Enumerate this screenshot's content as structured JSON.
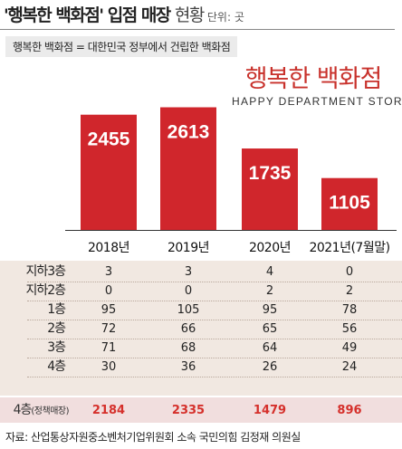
{
  "title": {
    "main": "'행복한 백화점' 입점 매장",
    "light": "현황",
    "unit": "단위: 곳"
  },
  "note": "행복한 백화점 = 대한민국 정부에서 건립한 백화점",
  "logo": {
    "korean": "행복한 백화점",
    "english": "HAPPY DEPARTMENT STORE"
  },
  "colors": {
    "bar": "#d0262c",
    "accent": "#d5302b",
    "table_bg": "#f1e8e1",
    "highlight_row_bg": "#f1dede"
  },
  "chart_data": {
    "type": "bar",
    "title": "'행복한 백화점' 입점 매장 현황",
    "categories": [
      "2018년",
      "2019년",
      "2020년",
      "2021년(7월말)"
    ],
    "values": [
      2455,
      2613,
      1735,
      1105
    ],
    "unit": "곳",
    "data_labels": true,
    "ylim": [
      0,
      2700
    ]
  },
  "table": {
    "rows": [
      {
        "label": "지하3층",
        "label_sub": "",
        "values": [
          "3",
          "3",
          "4",
          "0"
        ],
        "highlight": false
      },
      {
        "label": "지하2층",
        "label_sub": "",
        "values": [
          "0",
          "0",
          "2",
          "2"
        ],
        "highlight": false
      },
      {
        "label": "1층",
        "label_sub": "",
        "values": [
          "95",
          "105",
          "95",
          "78"
        ],
        "highlight": false
      },
      {
        "label": "2층",
        "label_sub": "",
        "values": [
          "72",
          "66",
          "65",
          "56"
        ],
        "highlight": false
      },
      {
        "label": "3층",
        "label_sub": "",
        "values": [
          "71",
          "68",
          "64",
          "49"
        ],
        "highlight": false
      },
      {
        "label": "4층",
        "label_sub": "",
        "values": [
          "30",
          "36",
          "26",
          "24"
        ],
        "highlight": false
      },
      {
        "label": "4층",
        "label_sub": "(정책매장)",
        "values": [
          "2184",
          "2335",
          "1479",
          "896"
        ],
        "highlight": true
      }
    ]
  },
  "source": "자료: 산업통상자원중소벤처기업위원회 소속 국민의힘 김정재 의원실"
}
